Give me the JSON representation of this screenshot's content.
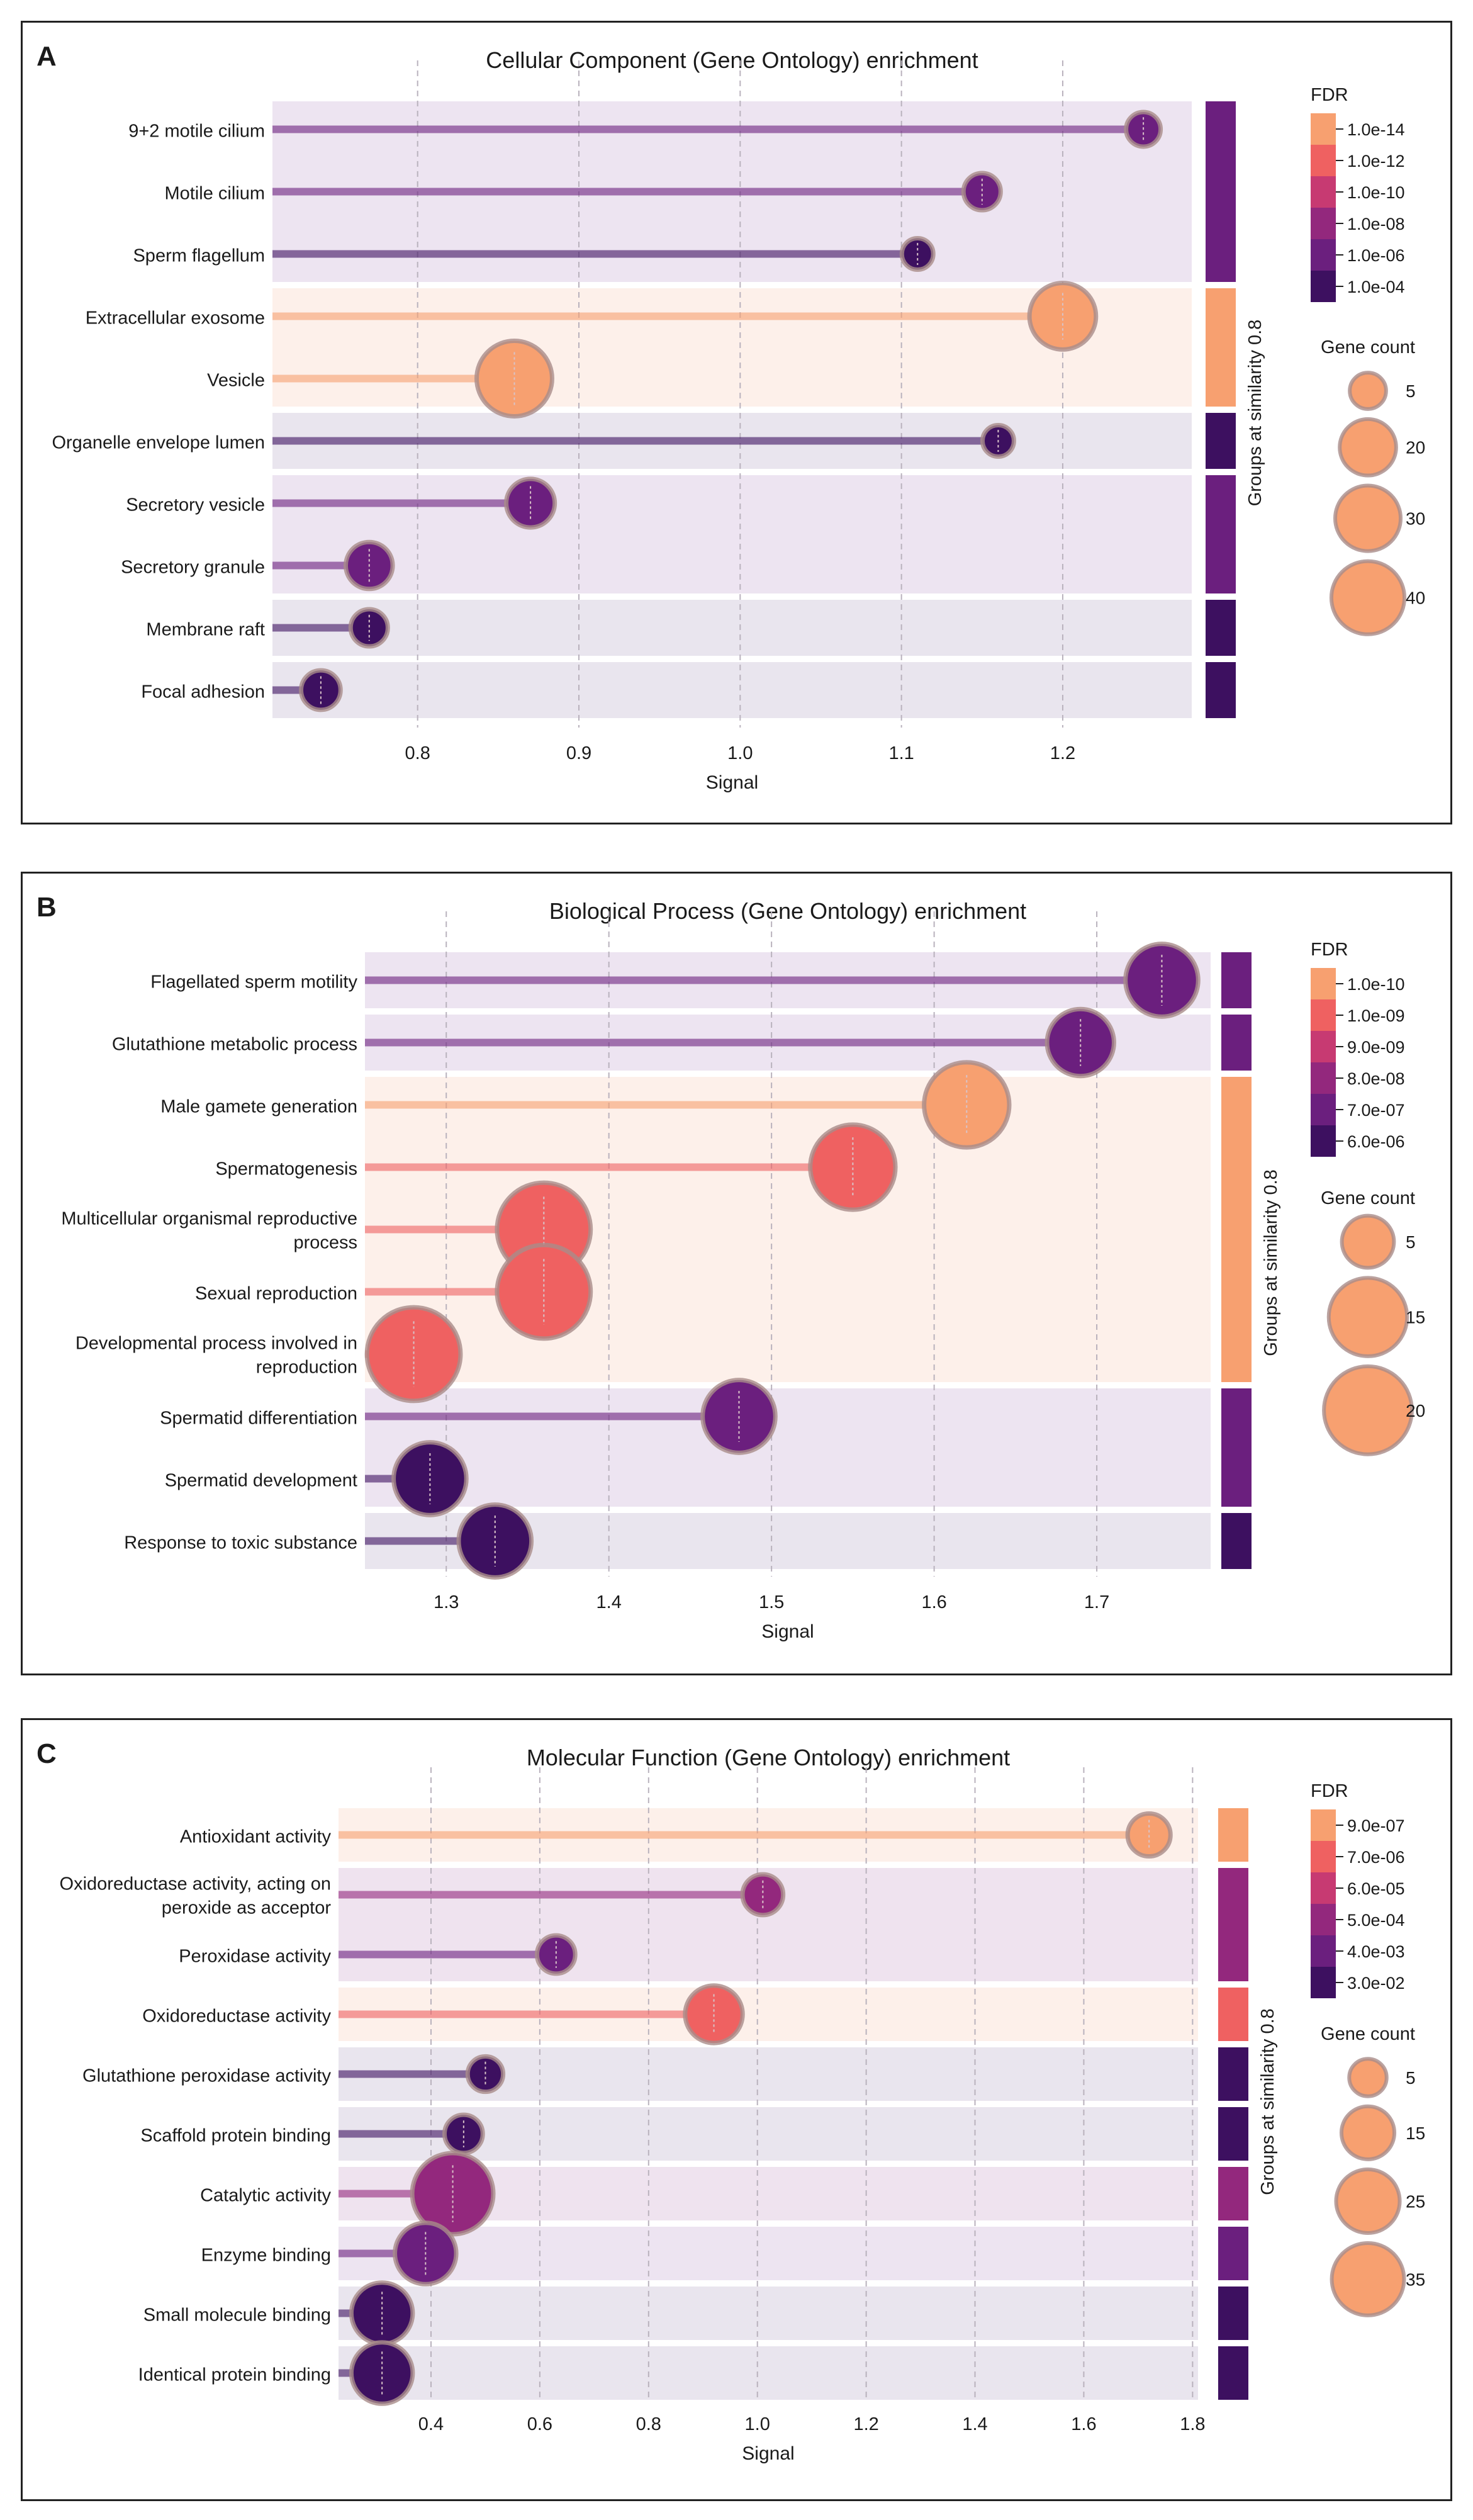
{
  "chart_data": [
    {
      "id": "A",
      "type": "scatter",
      "title": "Cellular Component (Gene Ontology) enrichment",
      "xlabel": "Signal",
      "group_label": "Groups at similarity 0.8",
      "xlim": [
        0.71,
        1.28
      ],
      "xticks": [
        0.8,
        0.9,
        1.0,
        1.1,
        1.2
      ],
      "tick_labels": [
        "0.8",
        "0.9",
        "1.0",
        "1.1",
        "1.2"
      ],
      "terms": [
        {
          "label": [
            "9+2 motile cilium"
          ],
          "signal": 1.25,
          "count": 3,
          "color": "#6b1f7e"
        },
        {
          "label": [
            "Motile cilium"
          ],
          "signal": 1.15,
          "count": 4,
          "color": "#6b1f7e"
        },
        {
          "label": [
            "Sperm flagellum"
          ],
          "signal": 1.11,
          "count": 2,
          "color": "#3d1060"
        },
        {
          "label": [
            "Extracellular exosome"
          ],
          "signal": 1.2,
          "count": 25,
          "color": "#f7a070"
        },
        {
          "label": [
            "Vesicle"
          ],
          "signal": 0.86,
          "count": 35,
          "color": "#f7a070"
        },
        {
          "label": [
            "Organelle envelope lumen"
          ],
          "signal": 1.16,
          "count": 2,
          "color": "#3d1060"
        },
        {
          "label": [
            "Secretory vesicle"
          ],
          "signal": 0.87,
          "count": 10,
          "color": "#6b1f7e"
        },
        {
          "label": [
            "Secretory granule"
          ],
          "signal": 0.77,
          "count": 9,
          "color": "#6b1f7e"
        },
        {
          "label": [
            "Membrane raft"
          ],
          "signal": 0.77,
          "count": 4,
          "color": "#3d1060"
        },
        {
          "label": [
            "Focal adhesion"
          ],
          "signal": 0.74,
          "count": 5,
          "color": "#3d1060"
        }
      ],
      "groups": [
        {
          "start": 0,
          "end": 2,
          "bg": "#ede4f1",
          "bar": "#6b1f7e"
        },
        {
          "start": 3,
          "end": 4,
          "bg": "#fdf0ea",
          "bar": "#f7a070"
        },
        {
          "start": 5,
          "end": 5,
          "bg": "#e9e5ee",
          "bar": "#3d1060"
        },
        {
          "start": 6,
          "end": 7,
          "bg": "#ede4f1",
          "bar": "#6b1f7e"
        },
        {
          "start": 8,
          "end": 8,
          "bg": "#e9e5ee",
          "bar": "#3d1060"
        },
        {
          "start": 9,
          "end": 9,
          "bg": "#e9e5ee",
          "bar": "#3d1060"
        }
      ],
      "fdr_title": "FDR",
      "fdr_legend": [
        {
          "label": "1.0e-14",
          "color": "#f7a070"
        },
        {
          "label": "1.0e-12",
          "color": "#ef6161"
        },
        {
          "label": "1.0e-10",
          "color": "#c73a72"
        },
        {
          "label": "1.0e-08",
          "color": "#93287d"
        },
        {
          "label": "1.0e-06",
          "color": "#6b1f7e"
        },
        {
          "label": "1.0e-04",
          "color": "#3d1060"
        }
      ],
      "size_title": "Gene count",
      "size_legend": [
        {
          "label": "5",
          "value": 5
        },
        {
          "label": "20",
          "value": 20
        },
        {
          "label": "30",
          "value": 30
        },
        {
          "label": "40",
          "value": 40
        }
      ]
    },
    {
      "id": "B",
      "type": "scatter",
      "title": "Biological Process (Gene Ontology) enrichment",
      "xlabel": "Signal",
      "group_label": "Groups at similarity 0.8",
      "xlim": [
        1.25,
        1.77
      ],
      "xticks": [
        1.3,
        1.4,
        1.5,
        1.6,
        1.7
      ],
      "tick_labels": [
        "1.3",
        "1.4",
        "1.5",
        "1.6",
        "1.7"
      ],
      "terms": [
        {
          "label": [
            "Flagellated sperm motility"
          ],
          "signal": 1.74,
          "count": 10,
          "color": "#6b1f7e"
        },
        {
          "label": [
            "Glutathione metabolic process"
          ],
          "signal": 1.69,
          "count": 8,
          "color": "#6b1f7e"
        },
        {
          "label": [
            "Male gamete generation"
          ],
          "signal": 1.62,
          "count": 15,
          "color": "#f7a070"
        },
        {
          "label": [
            "Spermatogenesis"
          ],
          "signal": 1.55,
          "count": 15,
          "color": "#ef6161"
        },
        {
          "label": [
            "Multicellular organismal reproductive",
            "process"
          ],
          "signal": 1.36,
          "count": 19,
          "color": "#ef6161"
        },
        {
          "label": [
            "Sexual reproduction"
          ],
          "signal": 1.36,
          "count": 19,
          "color": "#ef6161"
        },
        {
          "label": [
            "Developmental process involved in",
            "reproduction"
          ],
          "signal": 1.28,
          "count": 19,
          "color": "#ef6161"
        },
        {
          "label": [
            "Spermatid differentiation"
          ],
          "signal": 1.48,
          "count": 10,
          "color": "#6b1f7e"
        },
        {
          "label": [
            "Spermatid development"
          ],
          "signal": 1.29,
          "count": 10,
          "color": "#3d1060"
        },
        {
          "label": [
            "Response to toxic substance"
          ],
          "signal": 1.33,
          "count": 10,
          "color": "#3d1060"
        }
      ],
      "groups": [
        {
          "start": 0,
          "end": 0,
          "bg": "#ede4f1",
          "bar": "#6b1f7e"
        },
        {
          "start": 1,
          "end": 1,
          "bg": "#ede4f1",
          "bar": "#6b1f7e"
        },
        {
          "start": 2,
          "end": 6,
          "bg": "#fdf0ea",
          "bar": "#f7a070"
        },
        {
          "start": 7,
          "end": 8,
          "bg": "#ede4f1",
          "bar": "#6b1f7e"
        },
        {
          "start": 9,
          "end": 9,
          "bg": "#e9e5ee",
          "bar": "#3d1060"
        }
      ],
      "fdr_title": "FDR",
      "fdr_legend": [
        {
          "label": "1.0e-10",
          "color": "#f7a070"
        },
        {
          "label": "1.0e-09",
          "color": "#ef6161"
        },
        {
          "label": "9.0e-09",
          "color": "#c73a72"
        },
        {
          "label": "8.0e-08",
          "color": "#93287d"
        },
        {
          "label": "7.0e-07",
          "color": "#6b1f7e"
        },
        {
          "label": "6.0e-06",
          "color": "#3d1060"
        }
      ],
      "size_title": "Gene count",
      "size_legend": [
        {
          "label": "5",
          "value": 5
        },
        {
          "label": "15",
          "value": 15
        },
        {
          "label": "20",
          "value": 20
        }
      ]
    },
    {
      "id": "C",
      "type": "scatter",
      "title": "Molecular Function (Gene Ontology) enrichment",
      "xlabel": "Signal",
      "group_label": "Groups at similarity 0.8",
      "xlim": [
        0.23,
        1.81
      ],
      "xticks": [
        0.4,
        0.6,
        0.8,
        1.0,
        1.2,
        1.4,
        1.6,
        1.8
      ],
      "tick_labels": [
        "0.4",
        "0.6",
        "0.8",
        "1.0",
        "1.2",
        "1.4",
        "1.6",
        "1.8"
      ],
      "terms": [
        {
          "label": [
            "Antioxidant activity"
          ],
          "signal": 1.72,
          "count": 6,
          "color": "#f7a070"
        },
        {
          "label": [
            "Oxidoreductase activity, acting on",
            "peroxide as acceptor"
          ],
          "signal": 1.01,
          "count": 5,
          "color": "#93287d"
        },
        {
          "label": [
            "Peroxidase activity"
          ],
          "signal": 0.63,
          "count": 4,
          "color": "#6b1f7e"
        },
        {
          "label": [
            "Oxidoreductase activity"
          ],
          "signal": 0.92,
          "count": 15,
          "color": "#ef6161"
        },
        {
          "label": [
            "Glutathione peroxidase activity"
          ],
          "signal": 0.5,
          "count": 3,
          "color": "#3d1060"
        },
        {
          "label": [
            "Scaffold protein binding"
          ],
          "signal": 0.46,
          "count": 4,
          "color": "#3d1060"
        },
        {
          "label": [
            "Catalytic activity"
          ],
          "signal": 0.44,
          "count": 38,
          "color": "#93287d"
        },
        {
          "label": [
            "Enzyme binding"
          ],
          "signal": 0.39,
          "count": 18,
          "color": "#6b1f7e"
        },
        {
          "label": [
            "Small molecule binding"
          ],
          "signal": 0.31,
          "count": 18,
          "color": "#3d1060"
        },
        {
          "label": [
            "Identical protein binding"
          ],
          "signal": 0.31,
          "count": 18,
          "color": "#3d1060"
        }
      ],
      "groups": [
        {
          "start": 0,
          "end": 0,
          "bg": "#fdf0ea",
          "bar": "#f7a070"
        },
        {
          "start": 1,
          "end": 2,
          "bg": "#efe3ef",
          "bar": "#93287d"
        },
        {
          "start": 3,
          "end": 3,
          "bg": "#fdf0ea",
          "bar": "#ef6161"
        },
        {
          "start": 4,
          "end": 4,
          "bg": "#e9e5ee",
          "bar": "#3d1060"
        },
        {
          "start": 5,
          "end": 5,
          "bg": "#e9e5ee",
          "bar": "#3d1060"
        },
        {
          "start": 6,
          "end": 6,
          "bg": "#efe3ef",
          "bar": "#93287d"
        },
        {
          "start": 7,
          "end": 7,
          "bg": "#ede4f1",
          "bar": "#6b1f7e"
        },
        {
          "start": 8,
          "end": 8,
          "bg": "#e9e5ee",
          "bar": "#3d1060"
        },
        {
          "start": 9,
          "end": 9,
          "bg": "#e9e5ee",
          "bar": "#3d1060"
        }
      ],
      "fdr_title": "FDR",
      "fdr_legend": [
        {
          "label": "9.0e-07",
          "color": "#f7a070"
        },
        {
          "label": "7.0e-06",
          "color": "#ef6161"
        },
        {
          "label": "6.0e-05",
          "color": "#c73a72"
        },
        {
          "label": "5.0e-04",
          "color": "#93287d"
        },
        {
          "label": "4.0e-03",
          "color": "#6b1f7e"
        },
        {
          "label": "3.0e-02",
          "color": "#3d1060"
        }
      ],
      "size_title": "Gene count",
      "size_legend": [
        {
          "label": "5",
          "value": 5
        },
        {
          "label": "15",
          "value": 15
        },
        {
          "label": "25",
          "value": 25
        },
        {
          "label": "35",
          "value": 35
        }
      ]
    }
  ]
}
